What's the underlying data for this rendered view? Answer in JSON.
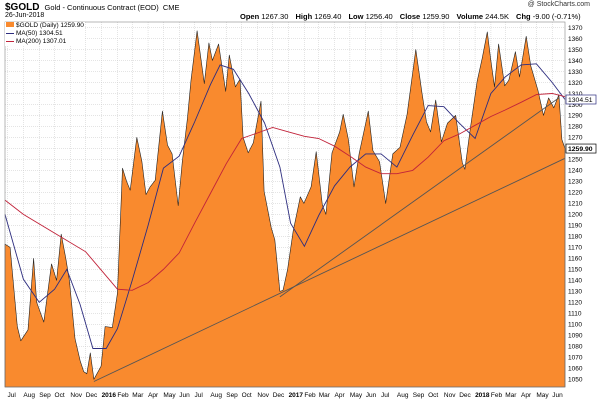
{
  "header": {
    "symbol": "$GOLD",
    "description": "Gold - Continuous Contract (EOD)",
    "exchange": "CME",
    "date": "26-Jun-2018",
    "watermark": "@ StockCharts.com",
    "open_label": "Open",
    "open": "1267.30",
    "high_label": "High",
    "high": "1269.40",
    "low_label": "Low",
    "low": "1256.40",
    "close_label": "Close",
    "close": "1259.90",
    "volume_label": "Volume",
    "volume": "244.5K",
    "chg_label": "Chg",
    "chg": "-9.00 (-0.71%)"
  },
  "legend": {
    "price": "$GOLD (Daily) 1259.90",
    "ma50": "MA(50) 1304.51",
    "ma200": "MA(200) 1307.01"
  },
  "colors": {
    "area": "#f98a2e",
    "ma50": "#2d2d7f",
    "ma200": "#c1233a",
    "grid": "#c8c8c8",
    "trendline": "#555555"
  },
  "chart_data": {
    "type": "area",
    "title": "$GOLD Gold - Continuous Contract (EOD) CME",
    "ylim": [
      1043,
      1375
    ],
    "y_ticks": [
      1050,
      1060,
      1070,
      1080,
      1090,
      1100,
      1110,
      1120,
      1130,
      1140,
      1150,
      1160,
      1170,
      1180,
      1190,
      1200,
      1210,
      1220,
      1230,
      1240,
      1250,
      1260,
      1270,
      1280,
      1290,
      1300,
      1310,
      1320,
      1330,
      1340,
      1350,
      1360,
      1370
    ],
    "y_scale": "linear",
    "grid": true,
    "x_range": [
      "2015-06-26",
      "2018-06-26"
    ],
    "x_ticks": [
      {
        "label": "Jul",
        "date": "2015-07-01"
      },
      {
        "label": "Aug",
        "date": "2015-08-01"
      },
      {
        "label": "Sep",
        "date": "2015-09-01"
      },
      {
        "label": "Oct",
        "date": "2015-10-01"
      },
      {
        "label": "Nov",
        "date": "2015-11-01"
      },
      {
        "label": "Dec",
        "date": "2015-12-01"
      },
      {
        "label": "2016",
        "date": "2016-01-01",
        "major": true
      },
      {
        "label": "Feb",
        "date": "2016-02-01"
      },
      {
        "label": "Mar",
        "date": "2016-03-01"
      },
      {
        "label": "Apr",
        "date": "2016-04-01"
      },
      {
        "label": "May",
        "date": "2016-05-01"
      },
      {
        "label": "Jun",
        "date": "2016-06-01"
      },
      {
        "label": "Jul",
        "date": "2016-07-01"
      },
      {
        "label": "Aug",
        "date": "2016-08-01"
      },
      {
        "label": "Sep",
        "date": "2016-09-01"
      },
      {
        "label": "Oct",
        "date": "2016-10-01"
      },
      {
        "label": "Nov",
        "date": "2016-11-01"
      },
      {
        "label": "Dec",
        "date": "2016-12-01"
      },
      {
        "label": "2017",
        "date": "2017-01-01",
        "major": true
      },
      {
        "label": "Feb",
        "date": "2017-02-01"
      },
      {
        "label": "Mar",
        "date": "2017-03-01"
      },
      {
        "label": "Apr",
        "date": "2017-04-01"
      },
      {
        "label": "May",
        "date": "2017-05-01"
      },
      {
        "label": "Jun",
        "date": "2017-06-01"
      },
      {
        "label": "Jul",
        "date": "2017-07-01"
      },
      {
        "label": "Aug",
        "date": "2017-08-01"
      },
      {
        "label": "Sep",
        "date": "2017-09-01"
      },
      {
        "label": "Oct",
        "date": "2017-10-01"
      },
      {
        "label": "Nov",
        "date": "2017-11-01"
      },
      {
        "label": "Dec",
        "date": "2017-12-01"
      },
      {
        "label": "2018",
        "date": "2018-01-01",
        "major": true
      },
      {
        "label": "Feb",
        "date": "2018-02-01"
      },
      {
        "label": "Mar",
        "date": "2018-03-01"
      },
      {
        "label": "Apr",
        "date": "2018-04-01"
      },
      {
        "label": "May",
        "date": "2018-05-01"
      },
      {
        "label": "Jun",
        "date": "2018-06-01"
      }
    ],
    "series": [
      {
        "name": "$GOLD (Daily)",
        "style": "area",
        "points": [
          [
            "2015-06-26",
            1173
          ],
          [
            "2015-07-06",
            1170
          ],
          [
            "2015-07-20",
            1098
          ],
          [
            "2015-07-27",
            1085
          ],
          [
            "2015-08-10",
            1095
          ],
          [
            "2015-08-21",
            1160
          ],
          [
            "2015-08-27",
            1120
          ],
          [
            "2015-09-10",
            1102
          ],
          [
            "2015-09-25",
            1155
          ],
          [
            "2015-10-05",
            1140
          ],
          [
            "2015-10-14",
            1182
          ],
          [
            "2015-10-23",
            1160
          ],
          [
            "2015-10-30",
            1140
          ],
          [
            "2015-11-10",
            1087
          ],
          [
            "2015-11-20",
            1067
          ],
          [
            "2015-11-27",
            1057
          ],
          [
            "2015-12-03",
            1055
          ],
          [
            "2015-12-10",
            1074
          ],
          [
            "2015-12-17",
            1050
          ],
          [
            "2015-12-31",
            1062
          ],
          [
            "2016-01-08",
            1098
          ],
          [
            "2016-01-22",
            1097
          ],
          [
            "2016-02-01",
            1128
          ],
          [
            "2016-02-11",
            1242
          ],
          [
            "2016-02-19",
            1230
          ],
          [
            "2016-02-26",
            1222
          ],
          [
            "2016-03-10",
            1270
          ],
          [
            "2016-03-20",
            1248
          ],
          [
            "2016-03-28",
            1218
          ],
          [
            "2016-04-05",
            1225
          ],
          [
            "2016-04-15",
            1231
          ],
          [
            "2016-04-29",
            1294
          ],
          [
            "2016-05-09",
            1263
          ],
          [
            "2016-05-18",
            1255
          ],
          [
            "2016-05-30",
            1208
          ],
          [
            "2016-06-07",
            1248
          ],
          [
            "2016-06-17",
            1287
          ],
          [
            "2016-06-24",
            1322
          ],
          [
            "2016-07-06",
            1367
          ],
          [
            "2016-07-20",
            1319
          ],
          [
            "2016-07-29",
            1356
          ],
          [
            "2016-08-05",
            1340
          ],
          [
            "2016-08-17",
            1355
          ],
          [
            "2016-08-31",
            1312
          ],
          [
            "2016-09-07",
            1345
          ],
          [
            "2016-09-19",
            1316
          ],
          [
            "2016-09-28",
            1323
          ],
          [
            "2016-10-04",
            1270
          ],
          [
            "2016-10-14",
            1256
          ],
          [
            "2016-10-24",
            1265
          ],
          [
            "2016-11-08",
            1303
          ],
          [
            "2016-11-14",
            1221
          ],
          [
            "2016-11-28",
            1188
          ],
          [
            "2016-12-05",
            1177
          ],
          [
            "2016-12-15",
            1130
          ],
          [
            "2016-12-21",
            1131
          ],
          [
            "2016-12-30",
            1150
          ],
          [
            "2017-01-10",
            1185
          ],
          [
            "2017-01-24",
            1216
          ],
          [
            "2017-01-31",
            1210
          ],
          [
            "2017-02-14",
            1225
          ],
          [
            "2017-02-24",
            1257
          ],
          [
            "2017-03-08",
            1209
          ],
          [
            "2017-03-15",
            1200
          ],
          [
            "2017-03-27",
            1256
          ],
          [
            "2017-04-11",
            1275
          ],
          [
            "2017-04-18",
            1291
          ],
          [
            "2017-04-28",
            1268
          ],
          [
            "2017-05-09",
            1225
          ],
          [
            "2017-05-19",
            1255
          ],
          [
            "2017-06-06",
            1294
          ],
          [
            "2017-06-15",
            1258
          ],
          [
            "2017-06-28",
            1248
          ],
          [
            "2017-07-10",
            1210
          ],
          [
            "2017-07-24",
            1255
          ],
          [
            "2017-08-07",
            1261
          ],
          [
            "2017-08-21",
            1291
          ],
          [
            "2017-09-07",
            1350
          ],
          [
            "2017-09-19",
            1311
          ],
          [
            "2017-09-28",
            1284
          ],
          [
            "2017-10-06",
            1275
          ],
          [
            "2017-10-16",
            1304
          ],
          [
            "2017-10-27",
            1266
          ],
          [
            "2017-11-08",
            1283
          ],
          [
            "2017-11-24",
            1290
          ],
          [
            "2017-12-07",
            1247
          ],
          [
            "2017-12-12",
            1241
          ],
          [
            "2017-12-22",
            1276
          ],
          [
            "2018-01-05",
            1321
          ],
          [
            "2018-01-15",
            1342
          ],
          [
            "2018-01-25",
            1366
          ],
          [
            "2018-01-31",
            1343
          ],
          [
            "2018-02-08",
            1316
          ],
          [
            "2018-02-16",
            1355
          ],
          [
            "2018-02-28",
            1317
          ],
          [
            "2018-03-08",
            1322
          ],
          [
            "2018-03-21",
            1348
          ],
          [
            "2018-03-29",
            1325
          ],
          [
            "2018-04-11",
            1362
          ],
          [
            "2018-04-20",
            1335
          ],
          [
            "2018-05-04",
            1313
          ],
          [
            "2018-05-15",
            1290
          ],
          [
            "2018-05-25",
            1306
          ],
          [
            "2018-06-04",
            1297
          ],
          [
            "2018-06-14",
            1309
          ],
          [
            "2018-06-20",
            1268
          ],
          [
            "2018-06-26",
            1259.9
          ]
        ]
      },
      {
        "name": "MA(50)",
        "style": "line",
        "points": [
          [
            "2015-06-26",
            1200
          ],
          [
            "2015-08-01",
            1141
          ],
          [
            "2015-09-01",
            1120
          ],
          [
            "2015-10-01",
            1132
          ],
          [
            "2015-10-25",
            1150
          ],
          [
            "2015-11-20",
            1118
          ],
          [
            "2015-12-15",
            1078
          ],
          [
            "2016-01-10",
            1078
          ],
          [
            "2016-02-01",
            1096
          ],
          [
            "2016-03-01",
            1140
          ],
          [
            "2016-04-01",
            1190
          ],
          [
            "2016-05-01",
            1242
          ],
          [
            "2016-06-01",
            1253
          ],
          [
            "2016-07-01",
            1284
          ],
          [
            "2016-08-01",
            1318
          ],
          [
            "2016-08-20",
            1336
          ],
          [
            "2016-09-15",
            1332
          ],
          [
            "2016-10-15",
            1310
          ],
          [
            "2016-11-15",
            1283
          ],
          [
            "2016-12-15",
            1243
          ],
          [
            "2017-01-05",
            1192
          ],
          [
            "2017-02-01",
            1171
          ],
          [
            "2017-03-01",
            1199
          ],
          [
            "2017-04-01",
            1226
          ],
          [
            "2017-05-01",
            1243
          ],
          [
            "2017-06-01",
            1255
          ],
          [
            "2017-07-01",
            1255
          ],
          [
            "2017-08-01",
            1243
          ],
          [
            "2017-09-01",
            1272
          ],
          [
            "2017-10-01",
            1299
          ],
          [
            "2017-11-01",
            1298
          ],
          [
            "2017-12-01",
            1283
          ],
          [
            "2018-01-01",
            1269
          ],
          [
            "2018-02-01",
            1310
          ],
          [
            "2018-03-01",
            1325
          ],
          [
            "2018-04-01",
            1336
          ],
          [
            "2018-05-01",
            1337
          ],
          [
            "2018-06-01",
            1320
          ],
          [
            "2018-06-26",
            1304.51
          ]
        ]
      },
      {
        "name": "MA(200)",
        "style": "line",
        "points": [
          [
            "2015-06-26",
            1213
          ],
          [
            "2015-08-01",
            1200
          ],
          [
            "2015-10-01",
            1183
          ],
          [
            "2015-12-01",
            1166
          ],
          [
            "2016-02-01",
            1132
          ],
          [
            "2016-03-01",
            1131
          ],
          [
            "2016-04-01",
            1138
          ],
          [
            "2016-05-01",
            1150
          ],
          [
            "2016-06-01",
            1165
          ],
          [
            "2016-07-01",
            1192
          ],
          [
            "2016-08-01",
            1219
          ],
          [
            "2016-09-01",
            1246
          ],
          [
            "2016-10-01",
            1269
          ],
          [
            "2016-11-01",
            1274
          ],
          [
            "2016-12-01",
            1279
          ],
          [
            "2017-01-01",
            1275
          ],
          [
            "2017-02-01",
            1271
          ],
          [
            "2017-03-01",
            1269
          ],
          [
            "2017-04-01",
            1262
          ],
          [
            "2017-05-01",
            1253
          ],
          [
            "2017-06-01",
            1243
          ],
          [
            "2017-07-01",
            1237
          ],
          [
            "2017-08-01",
            1237
          ],
          [
            "2017-09-01",
            1240
          ],
          [
            "2017-10-01",
            1252
          ],
          [
            "2017-11-01",
            1267
          ],
          [
            "2017-12-01",
            1273
          ],
          [
            "2018-01-01",
            1281
          ],
          [
            "2018-02-01",
            1289
          ],
          [
            "2018-03-01",
            1295
          ],
          [
            "2018-04-01",
            1302
          ],
          [
            "2018-05-01",
            1309
          ],
          [
            "2018-06-01",
            1310
          ],
          [
            "2018-06-26",
            1307.01
          ]
        ]
      }
    ],
    "trendlines": [
      {
        "from": [
          "2015-12-17",
          1048
        ],
        "to": [
          "2018-06-26",
          1251
        ]
      },
      {
        "from": [
          "2016-12-15",
          1125
        ],
        "to": [
          "2018-06-14",
          1306
        ]
      }
    ],
    "price_labels": [
      {
        "series": "MA(50)",
        "value": 1304.51,
        "text": "1304.51"
      },
      {
        "series": "$GOLD (Daily)",
        "value": 1259.9,
        "text": "1259.90"
      }
    ]
  }
}
